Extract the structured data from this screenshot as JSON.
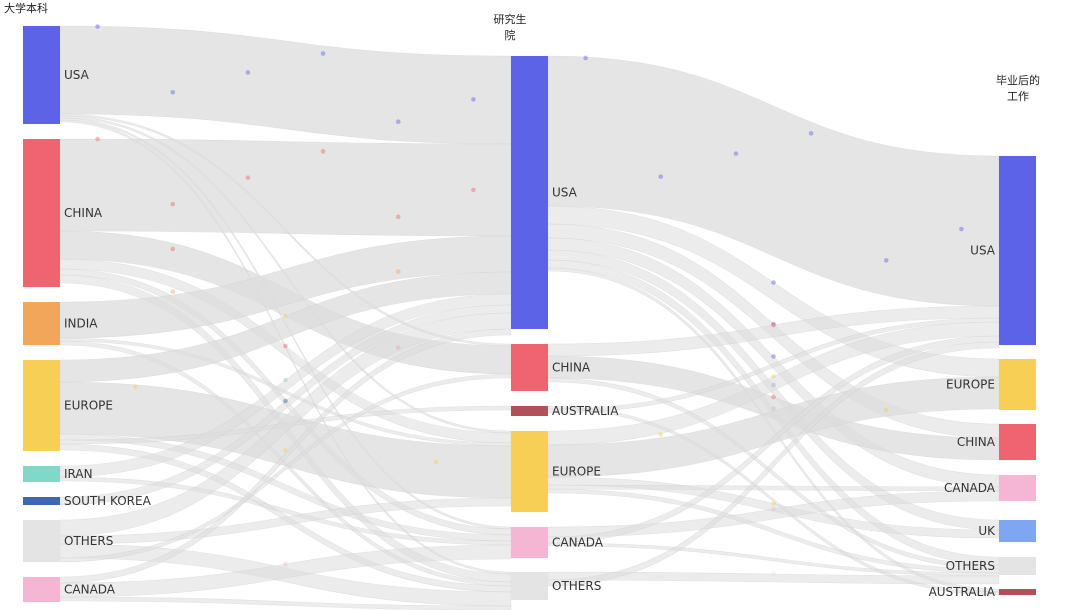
{
  "headers": {
    "col1": "大学本科",
    "col2_line1": "研究生",
    "col2_line2": "院",
    "col3_line1": "毕业后的",
    "col3_line2": "工作"
  },
  "columns": [
    {
      "nodes": [
        {
          "name": "USA",
          "color": "#5d63e6"
        },
        {
          "name": "CHINA",
          "color": "#ef6470"
        },
        {
          "name": "INDIA",
          "color": "#f2a65a"
        },
        {
          "name": "EUROPE",
          "color": "#f8cf55"
        },
        {
          "name": "IRAN",
          "color": "#7fd8c8"
        },
        {
          "name": "SOUTH KOREA",
          "color": "#3f67b0"
        },
        {
          "name": "OTHERS",
          "color": "#e4e4e4"
        },
        {
          "name": "CANADA",
          "color": "#f4b6d2"
        }
      ]
    },
    {
      "nodes": [
        {
          "name": "USA",
          "color": "#5d63e6"
        },
        {
          "name": "CHINA",
          "color": "#ef6470"
        },
        {
          "name": "AUSTRALIA",
          "color": "#b0505a"
        },
        {
          "name": "EUROPE",
          "color": "#f8cf55"
        },
        {
          "name": "CANADA",
          "color": "#f4b6d2"
        },
        {
          "name": "OTHERS",
          "color": "#e4e4e4"
        }
      ]
    },
    {
      "nodes": [
        {
          "name": "USA",
          "color": "#5d63e6"
        },
        {
          "name": "EUROPE",
          "color": "#f8cf55"
        },
        {
          "name": "CHINA",
          "color": "#ef6470"
        },
        {
          "name": "CANADA",
          "color": "#f4b6d2"
        },
        {
          "name": "UK",
          "color": "#7fa6f2"
        },
        {
          "name": "OTHERS",
          "color": "#e4e4e4"
        },
        {
          "name": "AUSTRALIA",
          "color": "#b0505a"
        }
      ]
    }
  ],
  "link_color": "#dcdcdc"
}
